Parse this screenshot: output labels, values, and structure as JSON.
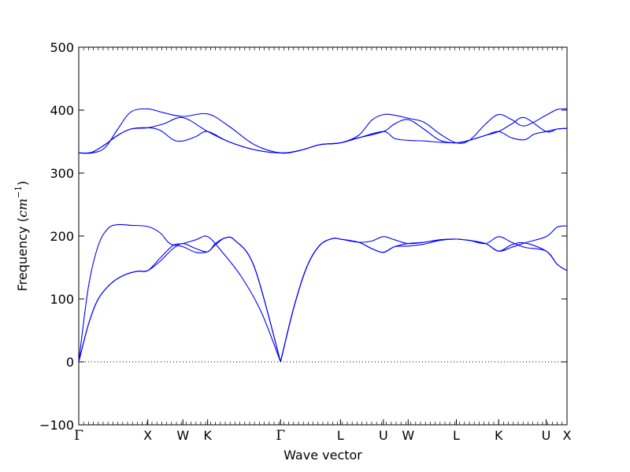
{
  "chart_data": {
    "type": "line",
    "title": "",
    "xlabel": "Wave vector",
    "ylabel_prefix": "Frequency (",
    "ylabel_unit_base": "cm",
    "ylabel_unit_exp": "−1",
    "ylabel_suffix": ")",
    "ylim": [
      -100,
      500
    ],
    "yticks": [
      "500",
      "400",
      "300",
      "200",
      "100",
      "0",
      "−100"
    ],
    "ytick_values": [
      500,
      400,
      300,
      200,
      100,
      0,
      -100
    ],
    "xlim": [
      0,
      7.5
    ],
    "kpoints": [
      {
        "label": "Γ",
        "x": 0
      },
      {
        "label": "X",
        "x": 1.06
      },
      {
        "label": "W",
        "x": 1.6
      },
      {
        "label": "K",
        "x": 1.98
      },
      {
        "label": "Γ",
        "x": 3.1
      },
      {
        "label": "L",
        "x": 4.02
      },
      {
        "label": "U",
        "x": 4.68
      },
      {
        "label": "W",
        "x": 5.06
      },
      {
        "label": "L",
        "x": 5.8
      },
      {
        "label": "K",
        "x": 6.45
      },
      {
        "label": "U",
        "x": 7.18
      },
      {
        "label": "X",
        "x": 7.5
      }
    ],
    "zero_line": 0,
    "line_color": "#0000ff",
    "branches": [
      [
        [
          0,
          0
        ],
        [
          0.15,
          60
        ],
        [
          0.3,
          100
        ],
        [
          0.5,
          125
        ],
        [
          0.7,
          138
        ],
        [
          0.9,
          144
        ],
        [
          1.06,
          145
        ],
        [
          1.25,
          160
        ],
        [
          1.45,
          180
        ],
        [
          1.6,
          188
        ],
        [
          1.8,
          180
        ],
        [
          1.98,
          175
        ],
        [
          2.1,
          188
        ],
        [
          2.25,
          197
        ],
        [
          2.4,
          193
        ],
        [
          2.7,
          150
        ],
        [
          3.1,
          0
        ]
      ],
      [
        [
          0,
          0
        ],
        [
          0.15,
          60
        ],
        [
          0.3,
          100
        ],
        [
          0.5,
          125
        ],
        [
          0.7,
          138
        ],
        [
          0.9,
          144
        ],
        [
          1.06,
          145
        ],
        [
          1.25,
          165
        ],
        [
          1.45,
          185
        ],
        [
          1.6,
          188
        ],
        [
          1.8,
          194
        ],
        [
          1.98,
          199
        ],
        [
          2.2,
          175
        ],
        [
          2.5,
          135
        ],
        [
          2.8,
          80
        ],
        [
          3.1,
          0
        ]
      ],
      [
        [
          0,
          0
        ],
        [
          0.15,
          120
        ],
        [
          0.3,
          185
        ],
        [
          0.45,
          212
        ],
        [
          0.6,
          218
        ],
        [
          0.8,
          217
        ],
        [
          1.06,
          215
        ],
        [
          1.25,
          205
        ],
        [
          1.4,
          188
        ],
        [
          1.6,
          183
        ],
        [
          1.8,
          174
        ],
        [
          1.98,
          175
        ],
        [
          2.1,
          186
        ],
        [
          2.25,
          197
        ],
        [
          2.4,
          193
        ],
        [
          2.7,
          150
        ],
        [
          3.1,
          0
        ]
      ],
      [
        [
          3.1,
          0
        ],
        [
          3.3,
          85
        ],
        [
          3.5,
          150
        ],
        [
          3.7,
          185
        ],
        [
          3.9,
          196
        ],
        [
          4.02,
          195
        ],
        [
          4.3,
          190
        ],
        [
          4.5,
          180
        ],
        [
          4.68,
          174
        ],
        [
          4.85,
          183
        ],
        [
          5.06,
          184
        ],
        [
          5.3,
          187
        ],
        [
          5.55,
          193
        ],
        [
          5.8,
          195
        ],
        [
          6.0,
          193
        ],
        [
          6.25,
          188
        ],
        [
          6.45,
          176
        ],
        [
          6.65,
          186
        ],
        [
          6.85,
          189
        ],
        [
          7.18,
          176
        ],
        [
          7.35,
          155
        ],
        [
          7.5,
          145
        ]
      ],
      [
        [
          3.1,
          0
        ],
        [
          3.3,
          85
        ],
        [
          3.5,
          150
        ],
        [
          3.7,
          185
        ],
        [
          3.9,
          196
        ],
        [
          4.02,
          195
        ],
        [
          4.3,
          190
        ],
        [
          4.5,
          192
        ],
        [
          4.68,
          199
        ],
        [
          4.85,
          194
        ],
        [
          5.06,
          188
        ],
        [
          5.3,
          190
        ],
        [
          5.55,
          194
        ],
        [
          5.8,
          195
        ],
        [
          6.0,
          193
        ],
        [
          6.25,
          188
        ],
        [
          6.45,
          199
        ],
        [
          6.65,
          190
        ],
        [
          6.85,
          182
        ],
        [
          7.18,
          176
        ],
        [
          7.35,
          155
        ],
        [
          7.5,
          145
        ]
      ],
      [
        [
          3.1,
          0
        ],
        [
          3.3,
          85
        ],
        [
          3.5,
          150
        ],
        [
          3.7,
          185
        ],
        [
          3.9,
          196
        ],
        [
          4.02,
          195
        ],
        [
          4.3,
          190
        ],
        [
          4.5,
          180
        ],
        [
          4.68,
          174
        ],
        [
          4.85,
          183
        ],
        [
          5.06,
          188
        ],
        [
          5.3,
          190
        ],
        [
          5.55,
          194
        ],
        [
          5.8,
          195
        ],
        [
          6.0,
          193
        ],
        [
          6.25,
          188
        ],
        [
          6.45,
          176
        ],
        [
          6.65,
          182
        ],
        [
          6.85,
          189
        ],
        [
          7.18,
          199
        ],
        [
          7.35,
          214
        ],
        [
          7.5,
          216
        ]
      ],
      [
        [
          0,
          332
        ],
        [
          0.2,
          333
        ],
        [
          0.4,
          345
        ],
        [
          0.6,
          360
        ],
        [
          0.8,
          370
        ],
        [
          1.06,
          372
        ],
        [
          1.25,
          368
        ],
        [
          1.45,
          353
        ],
        [
          1.6,
          351
        ],
        [
          1.8,
          358
        ],
        [
          1.98,
          366
        ],
        [
          2.3,
          350
        ],
        [
          2.7,
          337
        ],
        [
          3.1,
          332
        ],
        [
          3.4,
          336
        ],
        [
          3.7,
          345
        ],
        [
          4.02,
          348
        ],
        [
          4.3,
          356
        ],
        [
          4.68,
          366
        ],
        [
          4.85,
          378
        ],
        [
          5.06,
          385
        ],
        [
          5.3,
          370
        ],
        [
          5.55,
          352
        ],
        [
          5.8,
          348
        ],
        [
          6.0,
          352
        ],
        [
          6.25,
          360
        ],
        [
          6.45,
          366
        ],
        [
          6.65,
          378
        ],
        [
          6.85,
          388
        ],
        [
          7.18,
          366
        ],
        [
          7.35,
          370
        ],
        [
          7.5,
          371
        ]
      ],
      [
        [
          0,
          332
        ],
        [
          0.2,
          333
        ],
        [
          0.4,
          345
        ],
        [
          0.6,
          360
        ],
        [
          0.8,
          370
        ],
        [
          1.06,
          372
        ],
        [
          1.3,
          378
        ],
        [
          1.6,
          388
        ],
        [
          1.98,
          366
        ],
        [
          2.3,
          350
        ],
        [
          2.7,
          337
        ],
        [
          3.1,
          332
        ],
        [
          3.4,
          336
        ],
        [
          3.7,
          345
        ],
        [
          4.02,
          348
        ],
        [
          4.3,
          356
        ],
        [
          4.68,
          366
        ],
        [
          4.85,
          355
        ],
        [
          5.06,
          352
        ],
        [
          5.3,
          351
        ],
        [
          5.55,
          349
        ],
        [
          5.8,
          348
        ],
        [
          6.0,
          352
        ],
        [
          6.25,
          360
        ],
        [
          6.45,
          366
        ],
        [
          6.65,
          356
        ],
        [
          6.85,
          353
        ],
        [
          7.0,
          362
        ],
        [
          7.18,
          366
        ],
        [
          7.35,
          370
        ],
        [
          7.5,
          371
        ]
      ],
      [
        [
          0,
          332
        ],
        [
          0.2,
          332
        ],
        [
          0.4,
          340
        ],
        [
          0.6,
          370
        ],
        [
          0.8,
          397
        ],
        [
          1.06,
          402
        ],
        [
          1.3,
          396
        ],
        [
          1.6,
          390
        ],
        [
          1.98,
          394
        ],
        [
          2.3,
          375
        ],
        [
          2.7,
          345
        ],
        [
          3.1,
          332
        ],
        [
          3.4,
          336
        ],
        [
          3.7,
          345
        ],
        [
          4.02,
          348
        ],
        [
          4.3,
          360
        ],
        [
          4.5,
          384
        ],
        [
          4.68,
          393
        ],
        [
          4.85,
          392
        ],
        [
          5.06,
          387
        ],
        [
          5.3,
          381
        ],
        [
          5.55,
          362
        ],
        [
          5.8,
          348
        ],
        [
          6.0,
          352
        ],
        [
          6.25,
          378
        ],
        [
          6.45,
          393
        ],
        [
          6.65,
          385
        ],
        [
          6.85,
          375
        ],
        [
          7.18,
          392
        ],
        [
          7.35,
          401
        ],
        [
          7.5,
          402
        ]
      ]
    ]
  }
}
